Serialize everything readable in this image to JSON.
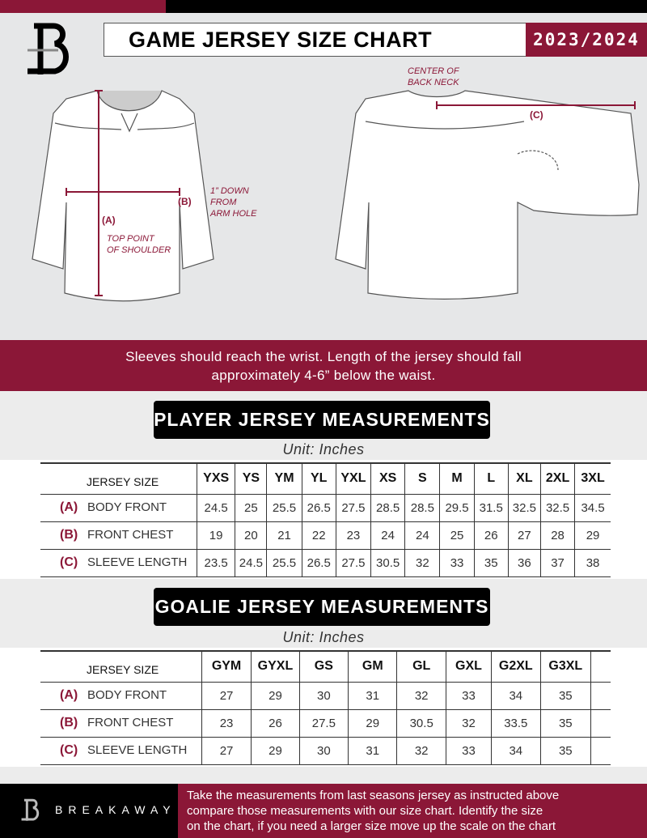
{
  "header": {
    "title": "GAME JERSEY SIZE CHART",
    "season": "2023/2024",
    "logo_letter": "B"
  },
  "diagram": {
    "labels": {
      "a": "(A)",
      "b": "(B)",
      "c": "(C)"
    },
    "notes": {
      "shoulder": [
        "TOP POINT",
        "OF SHOULDER"
      ],
      "armhole": [
        "1” DOWN",
        "FROM",
        "ARM HOLE"
      ],
      "neck": [
        "CENTER OF",
        "BACK NECK"
      ]
    }
  },
  "instruction_band": [
    "Sleeves should reach the wrist. Length of the jersey should fall",
    "approximately 4-6” below the waist."
  ],
  "player": {
    "heading": "PLAYER JERSEY MEASUREMENTS",
    "unit": "Unit: Inches",
    "size_label": "JERSEY SIZE",
    "sizes": [
      "YXS",
      "YS",
      "YM",
      "YL",
      "YXL",
      "XS",
      "S",
      "M",
      "L",
      "XL",
      "2XL",
      "3XL"
    ],
    "rows": [
      {
        "letter": "(A)",
        "label": "BODY FRONT",
        "values": [
          "24.5",
          "25",
          "25.5",
          "26.5",
          "27.5",
          "28.5",
          "28.5",
          "29.5",
          "31.5",
          "32.5",
          "32.5",
          "34.5"
        ]
      },
      {
        "letter": "(B)",
        "label": "FRONT CHEST",
        "values": [
          "19",
          "20",
          "21",
          "22",
          "23",
          "24",
          "24",
          "25",
          "26",
          "27",
          "28",
          "29"
        ]
      },
      {
        "letter": "(C)",
        "label": "SLEEVE LENGTH",
        "values": [
          "23.5",
          "24.5",
          "25.5",
          "26.5",
          "27.5",
          "30.5",
          "32",
          "33",
          "35",
          "36",
          "37",
          "38"
        ]
      }
    ]
  },
  "goalie": {
    "heading": "GOALIE JERSEY MEASUREMENTS",
    "unit": "Unit: Inches",
    "size_label": "JERSEY SIZE",
    "sizes": [
      "GYM",
      "GYXL",
      "GS",
      "GM",
      "GL",
      "GXL",
      "G2XL",
      "G3XL"
    ],
    "rows": [
      {
        "letter": "(A)",
        "label": "BODY FRONT",
        "values": [
          "27",
          "29",
          "30",
          "31",
          "32",
          "33",
          "34",
          "35"
        ]
      },
      {
        "letter": "(B)",
        "label": "FRONT CHEST",
        "values": [
          "23",
          "26",
          "27.5",
          "29",
          "30.5",
          "32",
          "33.5",
          "35"
        ]
      },
      {
        "letter": "(C)",
        "label": "SLEEVE LENGTH",
        "values": [
          "27",
          "29",
          "30",
          "31",
          "32",
          "33",
          "34",
          "35"
        ]
      }
    ]
  },
  "footer": {
    "brand": "BREAKAWAY",
    "text": [
      "Take the measurements from last seasons jersey as instructed above",
      "compare those measurements  with our size chart. Identify the size",
      "on the chart, if you need a larger size move up the scale on the chart"
    ]
  },
  "colors": {
    "accent": "#8b1737",
    "dark": "#000000",
    "background": "#e6e7e8"
  }
}
